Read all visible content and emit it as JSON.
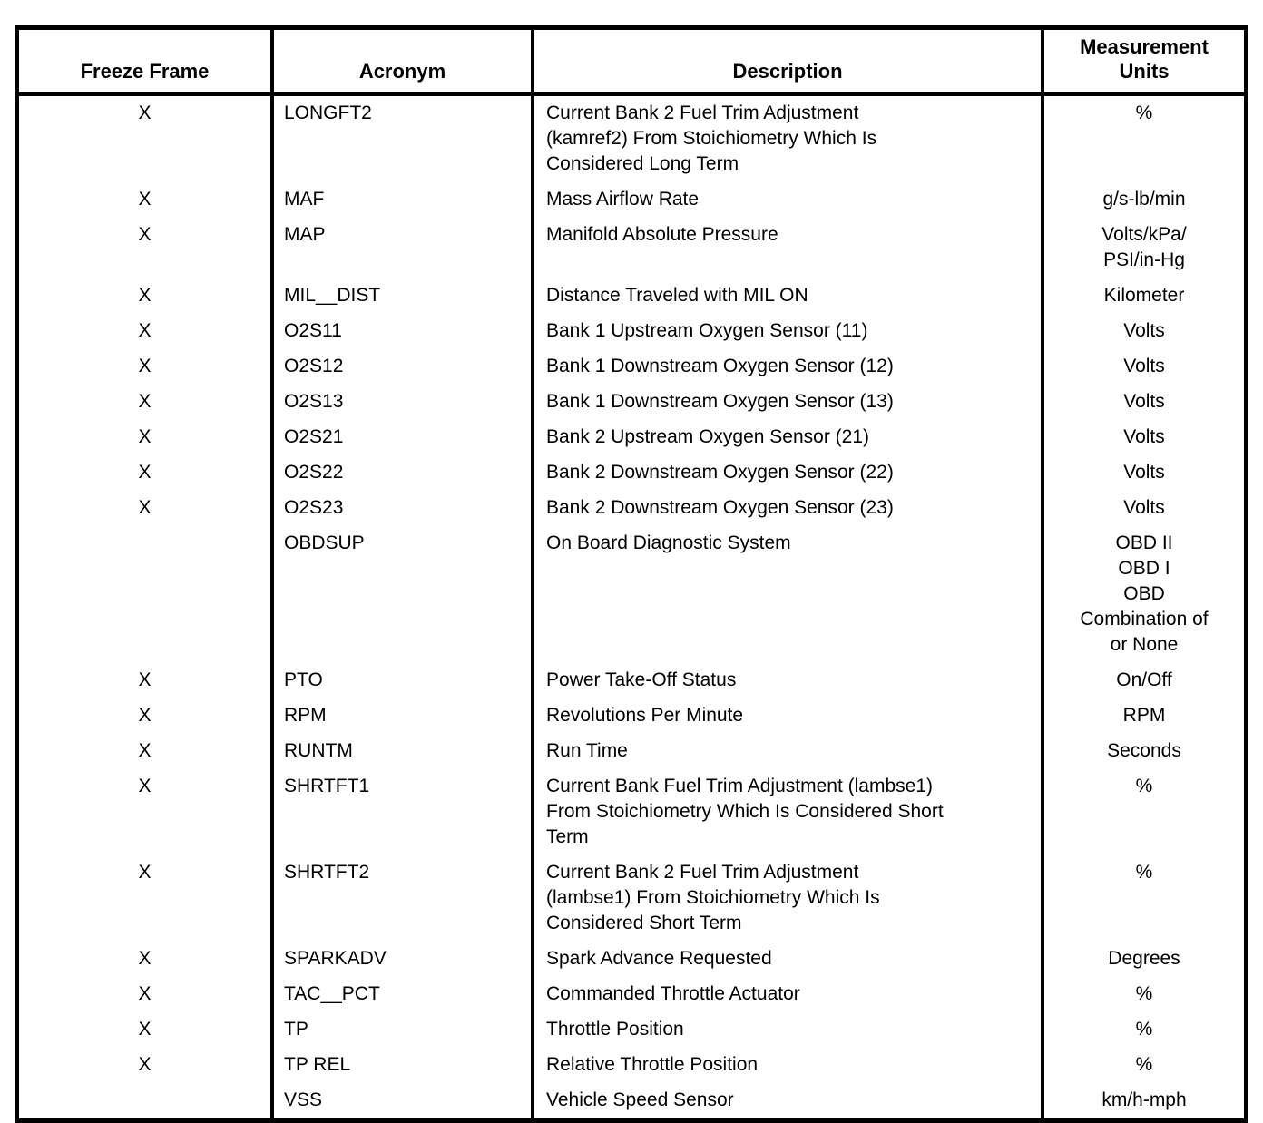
{
  "colors": {
    "border": "#000000",
    "text": "#000000",
    "background": "#ffffff"
  },
  "table": {
    "headers": {
      "freeze_frame": "Freeze Frame",
      "acronym": "Acronym",
      "description": "Description",
      "measurement_units": [
        "Measurement",
        "Units"
      ]
    },
    "rows": [
      {
        "freeze_frame": "X",
        "acronym": "LONGFT2",
        "description": [
          "Current Bank 2 Fuel Trim Adjustment",
          "(kamref2) From Stoichiometry Which Is",
          "Considered Long Term"
        ],
        "units": "%"
      },
      {
        "freeze_frame": "X",
        "acronym": "MAF",
        "description": "Mass Airflow Rate",
        "units": "g/s-lb/min"
      },
      {
        "freeze_frame": "X",
        "acronym": "MAP",
        "description": "Manifold Absolute Pressure",
        "units": [
          "Volts/kPa/",
          "PSI/in-Hg"
        ]
      },
      {
        "freeze_frame": "X",
        "acronym": "MIL__DIST",
        "description": "Distance Traveled with MIL ON",
        "units": "Kilometer"
      },
      {
        "freeze_frame": "X",
        "acronym": "O2S11",
        "description": "Bank 1 Upstream Oxygen Sensor (11)",
        "units": "Volts"
      },
      {
        "freeze_frame": "X",
        "acronym": "O2S12",
        "description": "Bank 1 Downstream Oxygen Sensor (12)",
        "units": "Volts"
      },
      {
        "freeze_frame": "X",
        "acronym": "O2S13",
        "description": "Bank 1 Downstream Oxygen Sensor (13)",
        "units": "Volts"
      },
      {
        "freeze_frame": "X",
        "acronym": "O2S21",
        "description": "Bank 2 Upstream Oxygen Sensor (21)",
        "units": "Volts"
      },
      {
        "freeze_frame": "X",
        "acronym": "O2S22",
        "description": "Bank 2 Downstream Oxygen Sensor (22)",
        "units": "Volts"
      },
      {
        "freeze_frame": "X",
        "acronym": "O2S23",
        "description": "Bank 2 Downstream Oxygen Sensor (23)",
        "units": "Volts"
      },
      {
        "freeze_frame": "",
        "acronym": "OBDSUP",
        "description": "On Board Diagnostic System",
        "units": [
          "OBD II",
          "OBD I",
          "OBD",
          "Combination of",
          "or None"
        ]
      },
      {
        "freeze_frame": "X",
        "acronym": "PTO",
        "description": "Power Take-Off Status",
        "units": "On/Off"
      },
      {
        "freeze_frame": "X",
        "acronym": "RPM",
        "description": "Revolutions Per Minute",
        "units": "RPM"
      },
      {
        "freeze_frame": "X",
        "acronym": "RUNTM",
        "description": "Run Time",
        "units": "Seconds"
      },
      {
        "freeze_frame": "X",
        "acronym": "SHRTFT1",
        "description": [
          "Current Bank Fuel Trim Adjustment (lambse1)",
          "From Stoichiometry Which Is Considered Short",
          "Term"
        ],
        "units": "%"
      },
      {
        "freeze_frame": "X",
        "acronym": "SHRTFT2",
        "description": [
          "Current Bank 2 Fuel Trim Adjustment",
          "(lambse1) From Stoichiometry Which Is",
          "Considered Short Term"
        ],
        "units": "%"
      },
      {
        "freeze_frame": "X",
        "acronym": "SPARKADV",
        "description": "Spark Advance Requested",
        "units": "Degrees"
      },
      {
        "freeze_frame": "X",
        "acronym": "TAC__PCT",
        "description": "Commanded Throttle Actuator",
        "units": "%"
      },
      {
        "freeze_frame": "X",
        "acronym": "TP",
        "description": "Throttle Position",
        "units": "%"
      },
      {
        "freeze_frame": "X",
        "acronym": "TP REL",
        "description": "Relative Throttle Position",
        "units": "%"
      },
      {
        "freeze_frame": "",
        "acronym": "VSS",
        "description": "Vehicle Speed Sensor",
        "units": "km/h-mph"
      }
    ]
  }
}
